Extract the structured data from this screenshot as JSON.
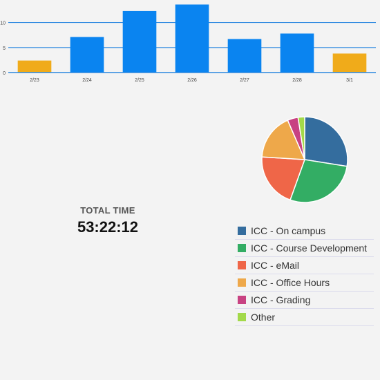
{
  "chart_data": [
    {
      "type": "bar",
      "categories": [
        "2/23",
        "2/24",
        "2/25",
        "2/26",
        "2/27",
        "2/28",
        "3/1"
      ],
      "values": [
        2.4,
        7.1,
        12.3,
        13.6,
        6.7,
        7.8,
        3.8
      ],
      "highlighted": [
        true,
        false,
        false,
        false,
        false,
        false,
        true
      ],
      "yticks": [
        0,
        5,
        10
      ],
      "ylim": [
        0,
        14.5
      ],
      "grid": true,
      "colors": {
        "bar": "#0a84f0",
        "highlight": "#f0ab1a",
        "grid": "#2a87e0"
      }
    },
    {
      "type": "pie",
      "labels": [
        "ICC - On campus",
        "ICC - Course Development",
        "ICC - eMail",
        "ICC - Office Hours",
        "ICC - Grading",
        "Other"
      ],
      "values": [
        27.5,
        28.0,
        20.5,
        17.5,
        4.0,
        2.5
      ],
      "colors": [
        "#346d9e",
        "#33ad64",
        "#ef6648",
        "#eea84a",
        "#c84282",
        "#a3d94a"
      ],
      "legend": "below-right"
    }
  ],
  "total": {
    "label": "TOTAL TIME",
    "value": "53:22:12"
  }
}
